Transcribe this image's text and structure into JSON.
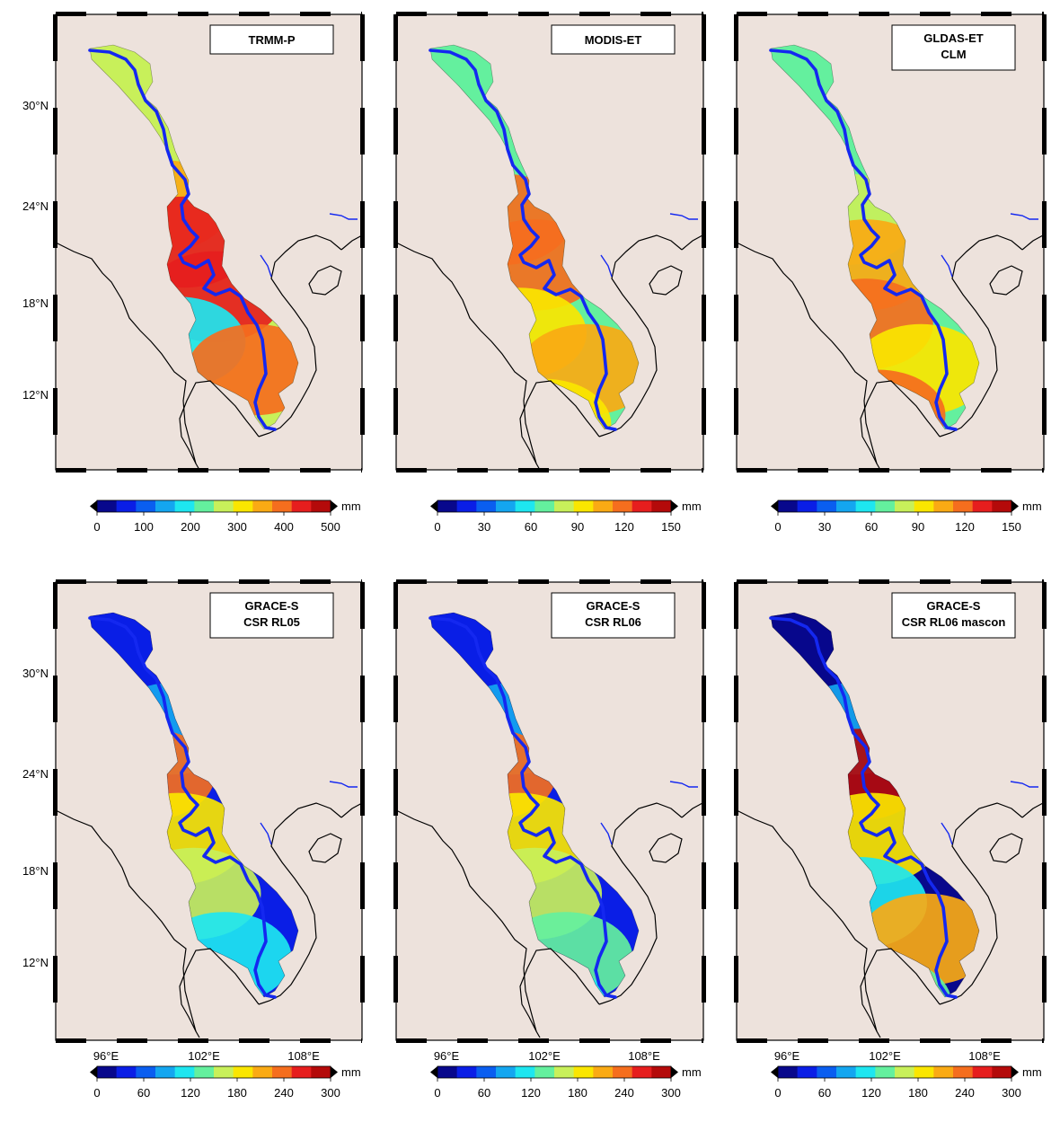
{
  "panels": [
    {
      "id": "trmm-p",
      "title_lines": [
        "TRMM-P"
      ],
      "scale": "precip",
      "show_lat_labels": true,
      "show_lon_labels": false,
      "field": "trmm"
    },
    {
      "id": "modis-et",
      "title_lines": [
        "MODIS-ET"
      ],
      "scale": "et",
      "show_lat_labels": false,
      "show_lon_labels": false,
      "field": "modis"
    },
    {
      "id": "gldas-et",
      "title_lines": [
        "GLDAS-ET",
        "CLM"
      ],
      "scale": "et",
      "show_lat_labels": false,
      "show_lon_labels": false,
      "field": "gldas"
    },
    {
      "id": "grace-csr-rl05",
      "title_lines": [
        "GRACE-S",
        "CSR RL05"
      ],
      "scale": "storage",
      "show_lat_labels": true,
      "show_lon_labels": true,
      "field": "rl05"
    },
    {
      "id": "grace-csr-rl06",
      "title_lines": [
        "GRACE-S",
        "CSR RL06"
      ],
      "scale": "storage",
      "show_lat_labels": false,
      "show_lon_labels": true,
      "field": "rl06"
    },
    {
      "id": "grace-csr-rl06-mascon",
      "title_lines": [
        "GRACE-S",
        "CSR RL06 mascon"
      ],
      "scale": "storage",
      "show_lat_labels": false,
      "show_lon_labels": true,
      "field": "mascon"
    }
  ],
  "axes": {
    "lat_labels": [
      "30°N",
      "24°N",
      "18°N",
      "12°N"
    ],
    "lon_labels": [
      "96°E",
      "102°E",
      "108°E"
    ]
  },
  "colorbars": {
    "precip": {
      "ticks": [
        "0",
        "100",
        "200",
        "300",
        "400",
        "500"
      ],
      "unit": "mm"
    },
    "et": {
      "ticks": [
        "0",
        "30",
        "60",
        "90",
        "120",
        "150"
      ],
      "unit": "mm"
    },
    "storage": {
      "ticks": [
        "0",
        "60",
        "120",
        "180",
        "240",
        "300"
      ],
      "unit": "mm"
    }
  },
  "palette": [
    "#08088c",
    "#0a1ee6",
    "#0a5ef0",
    "#14a6f0",
    "#1ee6f0",
    "#64f09e",
    "#c8f05a",
    "#fae600",
    "#faaa14",
    "#f56e1e",
    "#e61e1e",
    "#b40a0a"
  ],
  "colors": {
    "land": "#ede2dc",
    "river": "#1428f0",
    "coast": "#000000"
  }
}
